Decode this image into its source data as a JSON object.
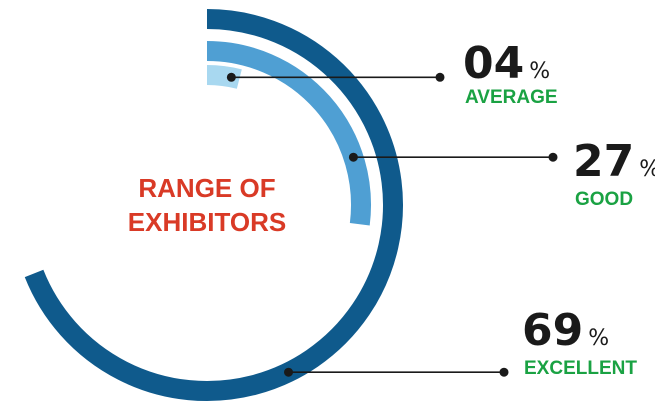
{
  "chart_data": {
    "type": "radial-bar",
    "title_lines": [
      "RANGE OF",
      "EXHIBITORS"
    ],
    "series": [
      {
        "name": "AVERAGE",
        "value_label": "04",
        "value": 4,
        "unit": "%",
        "color": "#a8d8f0"
      },
      {
        "name": "GOOD",
        "value_label": "27",
        "value": 27,
        "unit": "%",
        "color": "#4f9fd3"
      },
      {
        "name": "EXCELLENT",
        "value_label": "69",
        "value": 69,
        "unit": "%",
        "color": "#0f5a8c"
      }
    ],
    "colors": {
      "title": "#d93a26",
      "label": "#1aa243",
      "value": "#1a1a1a",
      "leader": "#1a1a1a"
    }
  }
}
